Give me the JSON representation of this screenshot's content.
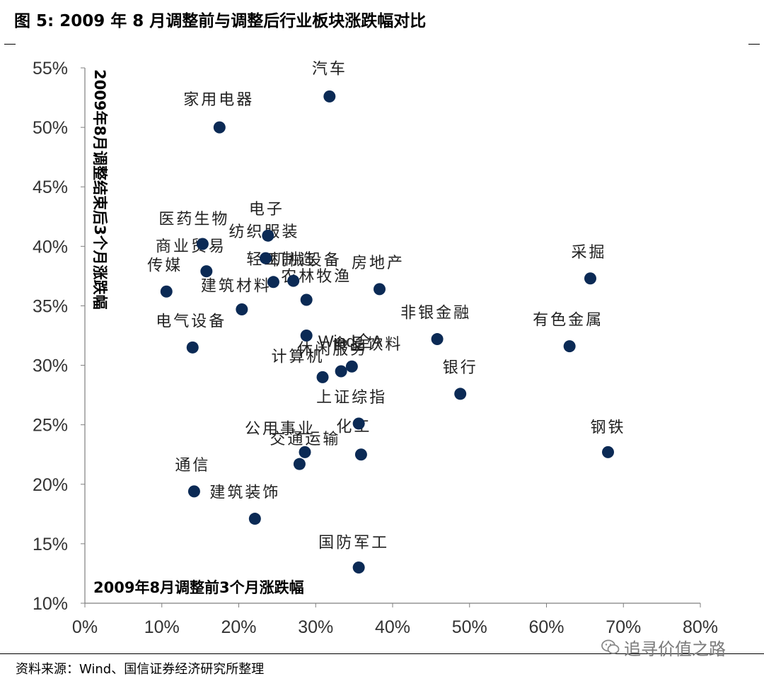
{
  "figure_title": "图 5: 2009 年 8 月调整前与调整后行业板块涨跌幅对比",
  "source_note": "资料来源：Wind、国信证券经济研究所整理",
  "watermark": "追寻价值之路",
  "colors": {
    "point": "#0b2a55",
    "axis": "#7f7f7f",
    "label": "#222222"
  },
  "icons": {
    "watermark": "wechat-icon"
  },
  "chart_data": {
    "type": "scatter",
    "title": "",
    "xlabel": "2009年8月调整前3个月涨跌幅",
    "ylabel": "2009年8月调整结束后3个月涨跌幅",
    "xlim": [
      0,
      80
    ],
    "ylim": [
      10,
      55
    ],
    "x_ticks": [
      0,
      10,
      20,
      30,
      40,
      50,
      60,
      70,
      80
    ],
    "y_ticks": [
      10,
      15,
      20,
      25,
      30,
      35,
      40,
      45,
      50,
      55
    ],
    "x_tick_labels": [
      "0%",
      "10%",
      "20%",
      "30%",
      "40%",
      "50%",
      "60%",
      "70%",
      "80%"
    ],
    "y_tick_labels": [
      "10%",
      "15%",
      "20%",
      "25%",
      "30%",
      "35%",
      "40%",
      "45%",
      "50%",
      "55%"
    ],
    "grid": false,
    "points": [
      {
        "label": "汽车",
        "x": 31.8,
        "y": 52.6
      },
      {
        "label": "家用电器",
        "x": 17.5,
        "y": 50.0
      },
      {
        "label": "医药生物",
        "x": 15.3,
        "y": 40.2
      },
      {
        "label": "商业贸易",
        "x": 15.8,
        "y": 37.9
      },
      {
        "label": "电子",
        "x": 23.8,
        "y": 40.9
      },
      {
        "label": "纺织服装",
        "x": 23.5,
        "y": 39.0
      },
      {
        "label": "轻工制造",
        "x": 24.5,
        "y": 37.0
      },
      {
        "label": "机械设备",
        "x": 27.1,
        "y": 37.1
      },
      {
        "label": "传媒",
        "x": 10.6,
        "y": 36.2
      },
      {
        "label": "建筑材料",
        "x": 20.4,
        "y": 34.7
      },
      {
        "label": "农林牧渔",
        "x": 28.8,
        "y": 35.5
      },
      {
        "label": "房地产",
        "x": 38.3,
        "y": 36.4
      },
      {
        "label": "采掘",
        "x": 65.7,
        "y": 37.3
      },
      {
        "label": "电气设备",
        "x": 14.0,
        "y": 31.5
      },
      {
        "label": "Wind全A",
        "x": 28.8,
        "y": 32.5
      },
      {
        "label": "食品饮料",
        "x": 34.7,
        "y": 29.9
      },
      {
        "label": "休闲服务",
        "x": 33.3,
        "y": 29.5
      },
      {
        "label": "计算机",
        "x": 30.9,
        "y": 29.0
      },
      {
        "label": "非银金融",
        "x": 45.8,
        "y": 32.2
      },
      {
        "label": "有色金属",
        "x": 63.0,
        "y": 31.6
      },
      {
        "label": "银行",
        "x": 48.8,
        "y": 27.6
      },
      {
        "label": "上证综指",
        "x": 35.6,
        "y": 25.1
      },
      {
        "label": "化工",
        "x": 35.9,
        "y": 22.5
      },
      {
        "label": "公用事业",
        "x": 28.6,
        "y": 22.7
      },
      {
        "label": "交通运输",
        "x": 27.9,
        "y": 21.7
      },
      {
        "label": "钢铁",
        "x": 68.0,
        "y": 22.7
      },
      {
        "label": "通信",
        "x": 14.2,
        "y": 19.4
      },
      {
        "label": "建筑装饰",
        "x": 22.1,
        "y": 17.1
      },
      {
        "label": "国防军工",
        "x": 35.6,
        "y": 13.0
      }
    ]
  }
}
